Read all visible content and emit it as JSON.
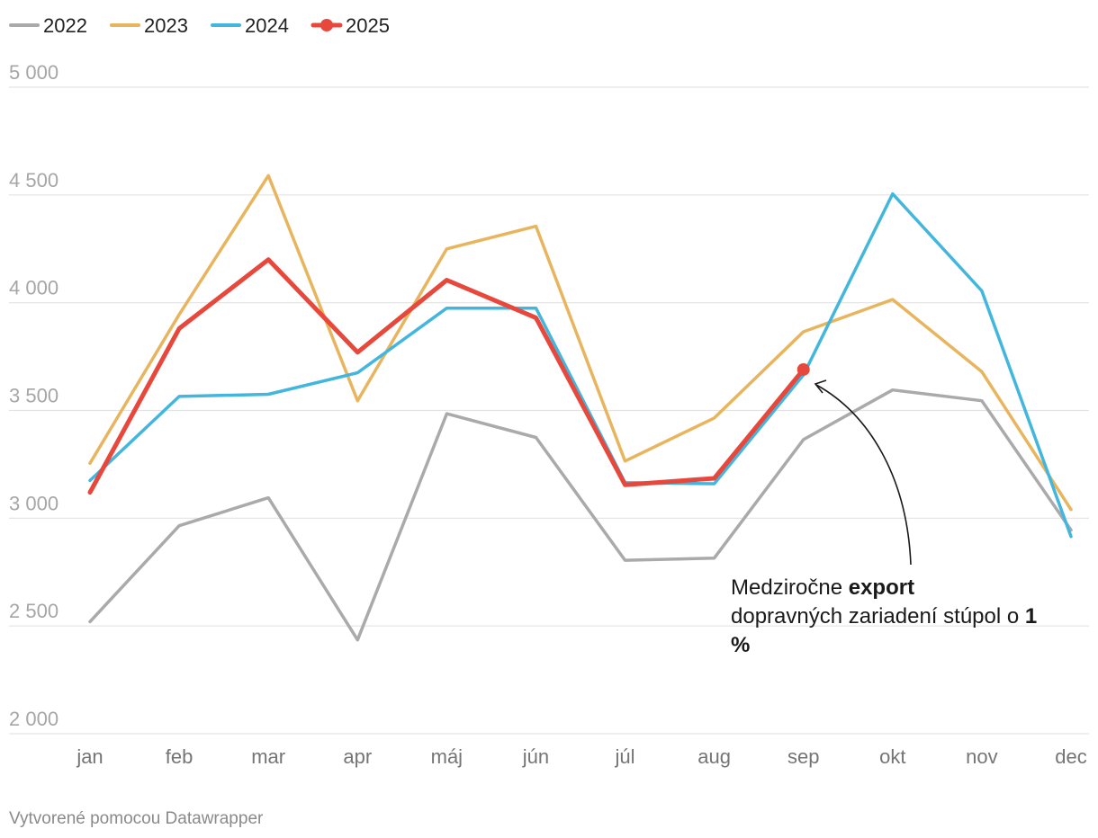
{
  "chart_data": {
    "type": "line",
    "categories": [
      "jan",
      "feb",
      "mar",
      "apr",
      "máj",
      "jún",
      "júl",
      "aug",
      "sep",
      "okt",
      "nov",
      "dec"
    ],
    "series": [
      {
        "name": "2022",
        "color": "#aaaaaa",
        "values": [
          2520,
          2965,
          3095,
          2435,
          3485,
          3375,
          2805,
          2815,
          3365,
          3595,
          3545,
          2945
        ]
      },
      {
        "name": "2023",
        "color": "#e8b55e",
        "values": [
          3255,
          3945,
          4590,
          3545,
          4250,
          4355,
          3265,
          3465,
          3865,
          4015,
          3680,
          3040
        ]
      },
      {
        "name": "2024",
        "color": "#43b6de",
        "values": [
          3175,
          3565,
          3575,
          3675,
          3975,
          3975,
          3165,
          3160,
          3665,
          4505,
          4055,
          2915
        ]
      },
      {
        "name": "2025",
        "color": "#e8473c",
        "values": [
          3120,
          3880,
          4200,
          3770,
          4105,
          3930,
          3155,
          3185,
          3690,
          null,
          null,
          null
        ]
      }
    ],
    "ylim": [
      2000,
      5000
    ],
    "yticks": [
      2000,
      2500,
      3000,
      3500,
      4000,
      4500,
      5000
    ],
    "ytick_labels": [
      "2 000",
      "2 500",
      "3 000",
      "3 500",
      "4 000",
      "4 500",
      "5 000"
    ],
    "grid": true,
    "legend_position": "top-left",
    "annotation": {
      "text_line1_prefix": "Medziročne ",
      "text_line1_bold": "export",
      "text_line2_prefix": "dopravných zariadení stúpol o ",
      "text_line2_bold": "1",
      "text_line3_bold": "%",
      "target_category": "sep",
      "target_series": "2025"
    },
    "footer": "Vytvorené pomocou Datawrapper"
  }
}
